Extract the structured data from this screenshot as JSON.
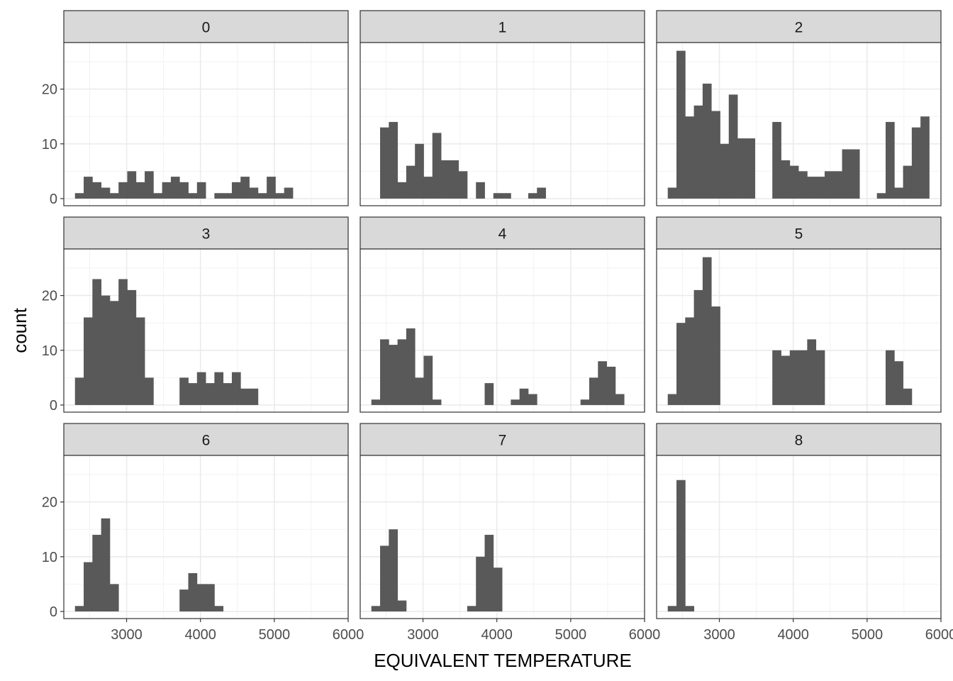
{
  "chart_data": {
    "type": "bar",
    "title": "",
    "xlabel": "EQUIVALENT TEMPERATURE",
    "ylabel": "count",
    "xlim": [
      2150,
      6000
    ],
    "ylim": [
      -1.3,
      28.5
    ],
    "x_ticks": [
      3000,
      4000,
      5000,
      6000
    ],
    "x_tick_labels": [
      "3000",
      "4000",
      "5000",
      "6000"
    ],
    "y_ticks": [
      0,
      10,
      20
    ],
    "y_tick_labels": [
      "0",
      "10",
      "20"
    ],
    "grid": true,
    "bin_width": 118,
    "panels": [
      {
        "label": "0",
        "bins": [
          {
            "x": 2360,
            "count": 1
          },
          {
            "x": 2478,
            "count": 4
          },
          {
            "x": 2596,
            "count": 3
          },
          {
            "x": 2714,
            "count": 2
          },
          {
            "x": 2832,
            "count": 1
          },
          {
            "x": 2950,
            "count": 3
          },
          {
            "x": 3068,
            "count": 5
          },
          {
            "x": 3186,
            "count": 3
          },
          {
            "x": 3304,
            "count": 5
          },
          {
            "x": 3422,
            "count": 1
          },
          {
            "x": 3540,
            "count": 3
          },
          {
            "x": 3658,
            "count": 4
          },
          {
            "x": 3776,
            "count": 3
          },
          {
            "x": 3894,
            "count": 1
          },
          {
            "x": 4012,
            "count": 3
          },
          {
            "x": 4248,
            "count": 1
          },
          {
            "x": 4366,
            "count": 1
          },
          {
            "x": 4484,
            "count": 3
          },
          {
            "x": 4602,
            "count": 4
          },
          {
            "x": 4720,
            "count": 2
          },
          {
            "x": 4838,
            "count": 1
          },
          {
            "x": 4956,
            "count": 4
          },
          {
            "x": 5074,
            "count": 1
          },
          {
            "x": 5192,
            "count": 2
          }
        ]
      },
      {
        "label": "1",
        "bins": [
          {
            "x": 2360,
            "count": 0
          },
          {
            "x": 2478,
            "count": 13
          },
          {
            "x": 2596,
            "count": 14
          },
          {
            "x": 2714,
            "count": 3
          },
          {
            "x": 2832,
            "count": 6
          },
          {
            "x": 2950,
            "count": 10
          },
          {
            "x": 3068,
            "count": 4
          },
          {
            "x": 3186,
            "count": 12
          },
          {
            "x": 3304,
            "count": 7
          },
          {
            "x": 3422,
            "count": 7
          },
          {
            "x": 3540,
            "count": 5
          },
          {
            "x": 3776,
            "count": 3
          },
          {
            "x": 4012,
            "count": 1
          },
          {
            "x": 4130,
            "count": 1
          },
          {
            "x": 4484,
            "count": 1
          },
          {
            "x": 4602,
            "count": 2
          }
        ]
      },
      {
        "label": "2",
        "bins": [
          {
            "x": 2360,
            "count": 2
          },
          {
            "x": 2478,
            "count": 27
          },
          {
            "x": 2596,
            "count": 15
          },
          {
            "x": 2714,
            "count": 17
          },
          {
            "x": 2832,
            "count": 21
          },
          {
            "x": 2950,
            "count": 16
          },
          {
            "x": 3068,
            "count": 10
          },
          {
            "x": 3186,
            "count": 19
          },
          {
            "x": 3304,
            "count": 11
          },
          {
            "x": 3422,
            "count": 11
          },
          {
            "x": 3776,
            "count": 14
          },
          {
            "x": 3894,
            "count": 7
          },
          {
            "x": 4012,
            "count": 6
          },
          {
            "x": 4130,
            "count": 5
          },
          {
            "x": 4248,
            "count": 4
          },
          {
            "x": 4366,
            "count": 4
          },
          {
            "x": 4484,
            "count": 5
          },
          {
            "x": 4602,
            "count": 5
          },
          {
            "x": 4720,
            "count": 9
          },
          {
            "x": 4838,
            "count": 9
          },
          {
            "x": 5192,
            "count": 1
          },
          {
            "x": 5310,
            "count": 14
          },
          {
            "x": 5428,
            "count": 2
          },
          {
            "x": 5546,
            "count": 6
          },
          {
            "x": 5664,
            "count": 13
          },
          {
            "x": 5782,
            "count": 15
          }
        ]
      },
      {
        "label": "3",
        "bins": [
          {
            "x": 2360,
            "count": 5
          },
          {
            "x": 2478,
            "count": 16
          },
          {
            "x": 2596,
            "count": 23
          },
          {
            "x": 2714,
            "count": 20
          },
          {
            "x": 2832,
            "count": 19
          },
          {
            "x": 2950,
            "count": 23
          },
          {
            "x": 3068,
            "count": 21
          },
          {
            "x": 3186,
            "count": 16
          },
          {
            "x": 3304,
            "count": 5
          },
          {
            "x": 3776,
            "count": 5
          },
          {
            "x": 3894,
            "count": 4
          },
          {
            "x": 4012,
            "count": 6
          },
          {
            "x": 4130,
            "count": 4
          },
          {
            "x": 4248,
            "count": 6
          },
          {
            "x": 4366,
            "count": 4
          },
          {
            "x": 4484,
            "count": 6
          },
          {
            "x": 4602,
            "count": 3
          },
          {
            "x": 4720,
            "count": 3
          }
        ]
      },
      {
        "label": "4",
        "bins": [
          {
            "x": 2360,
            "count": 1
          },
          {
            "x": 2478,
            "count": 12
          },
          {
            "x": 2596,
            "count": 11
          },
          {
            "x": 2714,
            "count": 12
          },
          {
            "x": 2832,
            "count": 14
          },
          {
            "x": 2950,
            "count": 5
          },
          {
            "x": 3068,
            "count": 9
          },
          {
            "x": 3186,
            "count": 1
          },
          {
            "x": 3894,
            "count": 4
          },
          {
            "x": 4248,
            "count": 1
          },
          {
            "x": 4366,
            "count": 3
          },
          {
            "x": 4484,
            "count": 2
          },
          {
            "x": 5192,
            "count": 1
          },
          {
            "x": 5310,
            "count": 5
          },
          {
            "x": 5428,
            "count": 8
          },
          {
            "x": 5546,
            "count": 7
          },
          {
            "x": 5664,
            "count": 2
          }
        ]
      },
      {
        "label": "5",
        "bins": [
          {
            "x": 2360,
            "count": 2
          },
          {
            "x": 2478,
            "count": 15
          },
          {
            "x": 2596,
            "count": 16
          },
          {
            "x": 2714,
            "count": 21
          },
          {
            "x": 2832,
            "count": 27
          },
          {
            "x": 2950,
            "count": 18
          },
          {
            "x": 3776,
            "count": 10
          },
          {
            "x": 3894,
            "count": 9
          },
          {
            "x": 4012,
            "count": 10
          },
          {
            "x": 4130,
            "count": 10
          },
          {
            "x": 4248,
            "count": 12
          },
          {
            "x": 4366,
            "count": 10
          },
          {
            "x": 5310,
            "count": 10
          },
          {
            "x": 5428,
            "count": 8
          },
          {
            "x": 5546,
            "count": 3
          }
        ]
      },
      {
        "label": "6",
        "bins": [
          {
            "x": 2360,
            "count": 1
          },
          {
            "x": 2478,
            "count": 9
          },
          {
            "x": 2596,
            "count": 14
          },
          {
            "x": 2714,
            "count": 17
          },
          {
            "x": 2832,
            "count": 5
          },
          {
            "x": 3776,
            "count": 4
          },
          {
            "x": 3894,
            "count": 7
          },
          {
            "x": 4012,
            "count": 5
          },
          {
            "x": 4130,
            "count": 5
          },
          {
            "x": 4248,
            "count": 1
          }
        ]
      },
      {
        "label": "7",
        "bins": [
          {
            "x": 2360,
            "count": 1
          },
          {
            "x": 2478,
            "count": 12
          },
          {
            "x": 2596,
            "count": 15
          },
          {
            "x": 2714,
            "count": 2
          },
          {
            "x": 3658,
            "count": 1
          },
          {
            "x": 3776,
            "count": 10
          },
          {
            "x": 3894,
            "count": 14
          },
          {
            "x": 4012,
            "count": 8
          }
        ]
      },
      {
        "label": "8",
        "bins": [
          {
            "x": 2360,
            "count": 1
          },
          {
            "x": 2478,
            "count": 24
          },
          {
            "x": 2596,
            "count": 1
          }
        ]
      }
    ]
  }
}
